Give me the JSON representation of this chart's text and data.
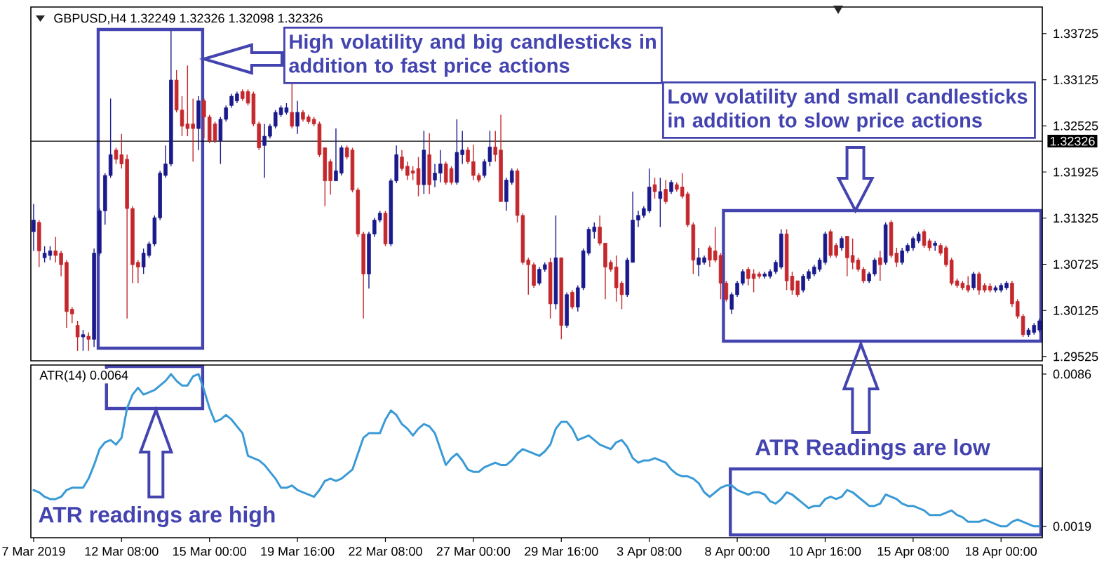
{
  "chart_data": [
    {
      "type": "candlestick",
      "title": "GBPUSD,H4 1.32249 1.32326 1.32098 1.32326",
      "categories": [
        null,
        null,
        null,
        null,
        null,
        null,
        null,
        null,
        null,
        null,
        null,
        null,
        null,
        null,
        null,
        null,
        null,
        null,
        null,
        null,
        null,
        null,
        null,
        null,
        null,
        null,
        null,
        null,
        null,
        null,
        null,
        null,
        null,
        null,
        null,
        null,
        null,
        null,
        null,
        null,
        null,
        null,
        null,
        null,
        null,
        null,
        null,
        null,
        null,
        null,
        null,
        null,
        null,
        null,
        null,
        null,
        null,
        null,
        null,
        null,
        null,
        null,
        null,
        null,
        null,
        null,
        null,
        null,
        null,
        null,
        null,
        null,
        null,
        null,
        null,
        null,
        null,
        null,
        null,
        null,
        null,
        null,
        null,
        null,
        null,
        null,
        null,
        null,
        null,
        null,
        null,
        null,
        null,
        null,
        null,
        null,
        null,
        null,
        null,
        null,
        null,
        null,
        null,
        null,
        null,
        null,
        null,
        null,
        null,
        null,
        null,
        null,
        null,
        null,
        null,
        null,
        null,
        null,
        null,
        null,
        null,
        null,
        null,
        null,
        null,
        null,
        null,
        null,
        null,
        null,
        null,
        null,
        null,
        null,
        null,
        null,
        null,
        null,
        null,
        null,
        null,
        null,
        null,
        null,
        null,
        null,
        null,
        null,
        null,
        null,
        null,
        null,
        null,
        null,
        null,
        null,
        null,
        null,
        null,
        null,
        null,
        null,
        null,
        null,
        null,
        null,
        null,
        null,
        null,
        null,
        null,
        null,
        null,
        null,
        null,
        null,
        null,
        null,
        null,
        null,
        null,
        null,
        null,
        null
      ],
      "ohlc": [
        [
          1.3115,
          1.3151,
          1.309,
          1.313
        ],
        [
          1.3127,
          1.313,
          1.3069,
          1.309
        ],
        [
          1.3081,
          1.3096,
          1.3075,
          1.3087
        ],
        [
          1.3084,
          1.3096,
          1.3078,
          1.309
        ],
        [
          1.309,
          1.3108,
          1.3075,
          1.3084
        ],
        [
          1.3087,
          1.309,
          1.3057,
          1.3072
        ],
        [
          1.3075,
          1.3078,
          1.299,
          1.3011
        ],
        [
          1.3014,
          1.3017,
          1.2996,
          1.3008
        ],
        [
          1.2993,
          1.2999,
          1.296,
          1.2978
        ],
        [
          1.2978,
          1.2987,
          1.296,
          1.2981
        ],
        [
          1.2979,
          1.2984,
          1.296,
          1.2975
        ],
        [
          1.2975,
          1.3093,
          1.2965,
          1.3087
        ],
        [
          1.3087,
          1.3145,
          1.3084,
          1.3142
        ],
        [
          1.3142,
          1.3191,
          1.3124,
          1.3188
        ],
        [
          1.3188,
          1.3288,
          1.3185,
          1.3215
        ],
        [
          1.3221,
          1.3224,
          1.3203,
          1.3209
        ],
        [
          1.3215,
          1.3242,
          1.3197,
          1.3203
        ],
        [
          1.3209,
          1.3215,
          1.3002,
          1.3145
        ],
        [
          1.3145,
          1.3148,
          1.3048,
          1.3072
        ],
        [
          1.3075,
          1.3078,
          1.3048,
          1.3069
        ],
        [
          1.3069,
          1.3093,
          1.306,
          1.3087
        ],
        [
          1.3084,
          1.3102,
          1.3081,
          1.3099
        ],
        [
          1.3099,
          1.3136,
          1.3096,
          1.3133
        ],
        [
          1.3133,
          1.3194,
          1.313,
          1.3191
        ],
        [
          1.3188,
          1.3227,
          1.3185,
          1.3203
        ],
        [
          1.3203,
          1.3376,
          1.32,
          1.3312
        ],
        [
          1.3312,
          1.3325,
          1.327,
          1.3273
        ],
        [
          1.3273,
          1.3291,
          1.3239,
          1.3252
        ],
        [
          1.3255,
          1.3331,
          1.3239,
          1.3249
        ],
        [
          1.3255,
          1.3288,
          1.3206,
          1.3249
        ],
        [
          1.3249,
          1.3291,
          1.3221,
          1.3285
        ],
        [
          1.3285,
          1.3288,
          1.3236,
          1.3264
        ],
        [
          1.3264,
          1.3267,
          1.323,
          1.3233
        ],
        [
          1.3255,
          1.3258,
          1.323,
          1.3233
        ],
        [
          1.3233,
          1.3264,
          1.3203,
          1.3261
        ],
        [
          1.3261,
          1.3279,
          1.3258,
          1.3276
        ],
        [
          1.3279,
          1.3294,
          1.3276,
          1.3291
        ],
        [
          1.3285,
          1.3297,
          1.3282,
          1.3294
        ],
        [
          1.3297,
          1.33,
          1.3285,
          1.3288
        ],
        [
          1.3297,
          1.33,
          1.3279,
          1.3282
        ],
        [
          1.3294,
          1.3297,
          1.3252,
          1.3255
        ],
        [
          1.3255,
          1.3258,
          1.3221,
          1.3224
        ],
        [
          1.3227,
          1.3255,
          1.3185,
          1.3239
        ],
        [
          1.3239,
          1.3255,
          1.3236,
          1.3252
        ],
        [
          1.3252,
          1.3273,
          1.3249,
          1.327
        ],
        [
          1.3267,
          1.3279,
          1.3264,
          1.3276
        ],
        [
          1.327,
          1.3282,
          1.3267,
          1.3276
        ],
        [
          1.327,
          1.3309,
          1.3249,
          1.3252
        ],
        [
          1.3252,
          1.3285,
          1.3242,
          1.327
        ],
        [
          1.327,
          1.3273,
          1.3258,
          1.3261
        ],
        [
          1.3264,
          1.3267,
          1.3255,
          1.3258
        ],
        [
          1.3261,
          1.3264,
          1.3252,
          1.3255
        ],
        [
          1.3255,
          1.3258,
          1.3212,
          1.3215
        ],
        [
          1.3224,
          1.3224,
          1.3148,
          1.3181
        ],
        [
          1.3206,
          1.3209,
          1.3163,
          1.3181
        ],
        [
          1.3181,
          1.3249,
          1.3181,
          1.3194
        ],
        [
          1.3191,
          1.3227,
          1.3188,
          1.3224
        ],
        [
          1.3224,
          1.3227,
          1.3209,
          1.3212
        ],
        [
          1.3221,
          1.3224,
          1.3166,
          1.3169
        ],
        [
          1.3169,
          1.3172,
          1.3108,
          1.3112
        ],
        [
          1.3112,
          1.3115,
          1.3002,
          1.306
        ],
        [
          1.306,
          1.3115,
          1.3041,
          1.3112
        ],
        [
          1.3112,
          1.3133,
          1.3108,
          1.313
        ],
        [
          1.313,
          1.3142,
          1.3127,
          1.3139
        ],
        [
          1.3139,
          1.3142,
          1.3096,
          1.3099
        ],
        [
          1.3099,
          1.3184,
          1.3096,
          1.3181
        ],
        [
          1.3181,
          1.3227,
          1.3178,
          1.3215
        ],
        [
          1.3212,
          1.3221,
          1.3194,
          1.3197
        ],
        [
          1.32,
          1.3206,
          1.3182,
          1.3188
        ],
        [
          1.3194,
          1.32,
          1.3182,
          1.3191
        ],
        [
          1.3197,
          1.3212,
          1.3161,
          1.3176
        ],
        [
          1.3176,
          1.3246,
          1.3164,
          1.3221
        ],
        [
          1.3215,
          1.3243,
          1.3164,
          1.3176
        ],
        [
          1.3182,
          1.3203,
          1.3173,
          1.3191
        ],
        [
          1.3191,
          1.3221,
          1.3179,
          1.3203
        ],
        [
          1.3203,
          1.3206,
          1.3176,
          1.3179
        ],
        [
          1.3197,
          1.32,
          1.3176,
          1.3179
        ],
        [
          1.3179,
          1.3261,
          1.3176,
          1.3218
        ],
        [
          1.3215,
          1.3246,
          1.3203,
          1.3221
        ],
        [
          1.3221,
          1.3225,
          1.3203,
          1.3206
        ],
        [
          1.3206,
          1.3228,
          1.3182,
          1.3188
        ],
        [
          1.3188,
          1.3191,
          1.3179,
          1.3182
        ],
        [
          1.3188,
          1.3209,
          1.3185,
          1.3206
        ],
        [
          1.3206,
          1.3246,
          1.32,
          1.3225
        ],
        [
          1.3225,
          1.3246,
          1.3206,
          1.3215
        ],
        [
          1.3221,
          1.3267,
          1.3154,
          1.3154
        ],
        [
          1.3154,
          1.3185,
          1.3142,
          1.3182
        ],
        [
          1.3179,
          1.3197,
          1.3176,
          1.3194
        ],
        [
          1.3194,
          1.3197,
          1.3127,
          1.3136
        ],
        [
          1.3136,
          1.3139,
          1.3072,
          1.3075
        ],
        [
          1.3078,
          1.3081,
          1.3033,
          1.3072
        ],
        [
          1.3072,
          1.3075,
          1.3042,
          1.3045
        ],
        [
          1.3048,
          1.3069,
          1.3045,
          1.3066
        ],
        [
          1.3066,
          1.3075,
          1.3063,
          1.3072
        ],
        [
          1.3075,
          1.3081,
          1.3002,
          1.3021
        ],
        [
          1.3021,
          1.3136,
          1.3014,
          1.3081
        ],
        [
          1.3081,
          1.3081,
          1.2975,
          1.2993
        ],
        [
          1.2993,
          1.3036,
          1.299,
          1.3033
        ],
        [
          1.3036,
          1.3039,
          1.3014,
          1.3017
        ],
        [
          1.3017,
          1.3045,
          1.3011,
          1.3042
        ],
        [
          1.3042,
          1.3093,
          1.3039,
          1.309
        ],
        [
          1.3087,
          1.3121,
          1.3084,
          1.3118
        ],
        [
          1.3115,
          1.3127,
          1.3106,
          1.3121
        ],
        [
          1.3121,
          1.3136,
          1.3097,
          1.31
        ],
        [
          1.31,
          1.31,
          1.3027,
          1.3069
        ],
        [
          1.3075,
          1.3078,
          1.3063,
          1.3066
        ],
        [
          1.3069,
          1.3084,
          1.3024,
          1.3042
        ],
        [
          1.3048,
          1.3051,
          1.3014,
          1.3033
        ],
        [
          1.3033,
          1.3081,
          1.303,
          1.3078
        ],
        [
          1.3075,
          1.3167,
          1.3075,
          1.313
        ],
        [
          1.313,
          1.3142,
          1.3121,
          1.3136
        ],
        [
          1.3136,
          1.3148,
          1.3133,
          1.3145
        ],
        [
          1.3142,
          1.3197,
          1.3139,
          1.3173
        ],
        [
          1.3176,
          1.3185,
          1.3158,
          1.3167
        ],
        [
          1.3158,
          1.3185,
          1.3121,
          1.3167
        ],
        [
          1.317,
          1.3182,
          1.3151,
          1.3154
        ],
        [
          1.3167,
          1.3182,
          1.3164,
          1.3179
        ],
        [
          1.3176,
          1.3179,
          1.3167,
          1.317
        ],
        [
          1.3173,
          1.3191,
          1.3158,
          1.3161
        ],
        [
          1.3164,
          1.3167,
          1.3121,
          1.3124
        ],
        [
          1.3124,
          1.3127,
          1.306,
          1.3078
        ],
        [
          1.3072,
          1.3094,
          1.3057,
          1.3081
        ],
        [
          1.3075,
          1.3084,
          1.3072,
          1.3081
        ],
        [
          1.3094,
          1.3097,
          1.3069,
          1.3078
        ],
        [
          1.309,
          1.3121,
          1.3075,
          1.3078
        ],
        [
          1.3084,
          1.3087,
          1.3027,
          1.3048
        ],
        [
          1.3048,
          1.3051,
          1.3024,
          1.3027
        ],
        [
          1.3014,
          1.3036,
          1.3008,
          1.3033
        ],
        [
          1.3033,
          1.3051,
          1.303,
          1.3048
        ],
        [
          1.3048,
          1.3066,
          1.3045,
          1.3063
        ],
        [
          1.3066,
          1.3069,
          1.3045,
          1.3054
        ],
        [
          1.306,
          1.3066,
          1.3036,
          1.3054
        ],
        [
          1.306,
          1.3063,
          1.3054,
          1.3057
        ],
        [
          1.3057,
          1.3063,
          1.3054,
          1.306
        ],
        [
          1.3057,
          1.3066,
          1.3054,
          1.3063
        ],
        [
          1.3063,
          1.3078,
          1.306,
          1.3075
        ],
        [
          1.3069,
          1.3118,
          1.3066,
          1.3112
        ],
        [
          1.3112,
          1.3118,
          1.3039,
          1.3051
        ],
        [
          1.3057,
          1.3063,
          1.3033,
          1.3039
        ],
        [
          1.3051,
          1.3051,
          1.303,
          1.3033
        ],
        [
          1.3039,
          1.306,
          1.3036,
          1.3057
        ],
        [
          1.3054,
          1.3066,
          1.3051,
          1.3063
        ],
        [
          1.306,
          1.3072,
          1.3057,
          1.3069
        ],
        [
          1.3066,
          1.3081,
          1.3063,
          1.3078
        ],
        [
          1.3075,
          1.3115,
          1.3072,
          1.3112
        ],
        [
          1.3115,
          1.3118,
          1.3081,
          1.3084
        ],
        [
          1.3097,
          1.31,
          1.3081,
          1.3084
        ],
        [
          1.3094,
          1.3109,
          1.309,
          1.3106
        ],
        [
          1.3109,
          1.3109,
          1.3057,
          1.3081
        ],
        [
          1.3084,
          1.3106,
          1.3066,
          1.3075
        ],
        [
          1.3078,
          1.3081,
          1.3063,
          1.3066
        ],
        [
          1.3066,
          1.3069,
          1.3048,
          1.3051
        ],
        [
          1.3051,
          1.3063,
          1.3048,
          1.306
        ],
        [
          1.306,
          1.3081,
          1.3057,
          1.3078
        ],
        [
          1.3081,
          1.309,
          1.3051,
          1.3072
        ],
        [
          1.3075,
          1.3127,
          1.3072,
          1.3124
        ],
        [
          1.3127,
          1.313,
          1.3081,
          1.3084
        ],
        [
          1.3087,
          1.3094,
          1.3069,
          1.3075
        ],
        [
          1.3075,
          1.3094,
          1.3072,
          1.309
        ],
        [
          1.309,
          1.31,
          1.3087,
          1.3097
        ],
        [
          1.3094,
          1.3109,
          1.309,
          1.3106
        ],
        [
          1.3103,
          1.3115,
          1.31,
          1.3112
        ],
        [
          1.3115,
          1.3118,
          1.3094,
          1.3097
        ],
        [
          1.3103,
          1.3106,
          1.309,
          1.3094
        ],
        [
          1.3097,
          1.3103,
          1.309,
          1.31
        ],
        [
          1.3097,
          1.31,
          1.3084,
          1.3087
        ],
        [
          1.3094,
          1.3097,
          1.3069,
          1.3072
        ],
        [
          1.3078,
          1.3081,
          1.3045,
          1.3048
        ],
        [
          1.3051,
          1.3054,
          1.3042,
          1.3045
        ],
        [
          1.3048,
          1.3051,
          1.3039,
          1.3042
        ],
        [
          1.3045,
          1.3057,
          1.3036,
          1.3039
        ],
        [
          1.3042,
          1.3063,
          1.3039,
          1.306
        ],
        [
          1.306,
          1.3063,
          1.3033,
          1.3039
        ],
        [
          1.3045,
          1.3048,
          1.3036,
          1.3039
        ],
        [
          1.3044,
          1.3048,
          1.3036,
          1.3039
        ],
        [
          1.3039,
          1.3045,
          1.3036,
          1.3042
        ],
        [
          1.3039,
          1.3048,
          1.3036,
          1.3045
        ],
        [
          1.3042,
          1.3051,
          1.3039,
          1.3048
        ],
        [
          1.3048,
          1.3051,
          1.3017,
          1.3021
        ],
        [
          1.3024,
          1.3027,
          1.3002,
          1.3005
        ],
        [
          1.3005,
          1.3008,
          1.2978,
          1.2981
        ],
        [
          1.2981,
          1.299,
          1.2978,
          1.2987
        ],
        [
          1.2984,
          1.2996,
          1.2981,
          1.2993
        ],
        [
          1.2987,
          1.3002,
          1.2984,
          1.2999
        ]
      ],
      "colors": [
        "#1a1a8c",
        "#c4282d",
        "#1a1a8c",
        "#1a1a8c",
        "#c4282d",
        "#c4282d",
        "#c4282d",
        "#c4282d",
        "#c4282d",
        "#1a1a8c",
        "#c4282d",
        "#1a1a8c",
        "#1a1a8c",
        "#1a1a8c",
        "#1a1a8c",
        "#c4282d",
        "#c4282d",
        "#c4282d",
        "#c4282d",
        "#c4282d",
        "#1a1a8c",
        "#1a1a8c",
        "#1a1a8c",
        "#1a1a8c",
        "#1a1a8c",
        "#1a1a8c",
        "#c4282d",
        "#c4282d",
        "#c4282d",
        "#c4282d",
        "#1a1a8c",
        "#c4282d",
        "#c4282d",
        "#c4282d",
        "#1a1a8c",
        "#1a1a8c",
        "#1a1a8c",
        "#1a1a8c",
        "#c4282d",
        "#c4282d",
        "#c4282d",
        "#c4282d",
        "#1a1a8c",
        "#1a1a8c",
        "#1a1a8c",
        "#1a1a8c",
        "#1a1a8c",
        "#c4282d",
        "#1a1a8c",
        "#c4282d",
        "#c4282d",
        "#c4282d",
        "#c4282d",
        "#c4282d",
        "#c4282d",
        "#1a1a8c",
        "#1a1a8c",
        "#c4282d",
        "#c4282d",
        "#c4282d",
        "#c4282d",
        "#1a1a8c",
        "#1a1a8c",
        "#1a1a8c",
        "#c4282d",
        "#1a1a8c",
        "#1a1a8c",
        "#c4282d",
        "#c4282d",
        "#c4282d",
        "#c4282d",
        "#1a1a8c",
        "#c4282d",
        "#1a1a8c",
        "#1a1a8c",
        "#c4282d",
        "#c4282d",
        "#1a1a8c",
        "#1a1a8c",
        "#c4282d",
        "#c4282d",
        "#c4282d",
        "#1a1a8c",
        "#1a1a8c",
        "#c4282d",
        "#c4282d",
        "#1a1a8c",
        "#1a1a8c",
        "#c4282d",
        "#c4282d",
        "#c4282d",
        "#c4282d",
        "#1a1a8c",
        "#1a1a8c",
        "#c4282d",
        "#1a1a8c",
        "#c4282d",
        "#1a1a8c",
        "#c4282d",
        "#1a1a8c",
        "#1a1a8c",
        "#1a1a8c",
        "#1a1a8c",
        "#c4282d",
        "#c4282d",
        "#c4282d",
        "#c4282d",
        "#c4282d",
        "#1a1a8c",
        "#1a1a8c",
        "#1a1a8c",
        "#1a1a8c",
        "#1a1a8c",
        "#c4282d",
        "#1a1a8c",
        "#c4282d",
        "#1a1a8c",
        "#c4282d",
        "#c4282d",
        "#c4282d",
        "#c4282d",
        "#1a1a8c",
        "#1a1a8c",
        "#c4282d",
        "#c4282d",
        "#c4282d",
        "#c4282d",
        "#1a1a8c",
        "#1a1a8c",
        "#1a1a8c",
        "#c4282d",
        "#c4282d",
        "#c4282d",
        "#1a1a8c",
        "#1a1a8c",
        "#1a1a8c",
        "#1a1a8c",
        "#c4282d",
        "#c4282d",
        "#c4282d",
        "#1a1a8c",
        "#1a1a8c",
        "#1a1a8c",
        "#1a1a8c",
        "#1a1a8c",
        "#c4282d",
        "#c4282d",
        "#1a1a8c",
        "#c4282d",
        "#c4282d",
        "#c4282d",
        "#c4282d",
        "#1a1a8c",
        "#1a1a8c",
        "#c4282d",
        "#1a1a8c",
        "#c4282d",
        "#c4282d",
        "#1a1a8c",
        "#1a1a8c",
        "#1a1a8c",
        "#1a1a8c",
        "#c4282d",
        "#c4282d",
        "#1a1a8c",
        "#c4282d",
        "#c4282d",
        "#c4282d",
        "#c4282d",
        "#c4282d",
        "#c4282d",
        "#1a1a8c",
        "#c4282d",
        "#c4282d",
        "#c4282d",
        "#1a1a8c",
        "#1a1a8c",
        "#1a1a8c",
        "#c4282d",
        "#c4282d",
        "#c4282d",
        "#1a1a8c",
        "#1a1a8c",
        "#1a1a8c"
      ],
      "ylim": [
        1.2947,
        1.3407
      ],
      "yticks": [
        1.33725,
        1.33125,
        1.32525,
        1.31925,
        1.31325,
        1.30725,
        1.30125,
        1.29525
      ],
      "ref_lines": [
        {
          "axis": "y",
          "value": 1.32326,
          "label": "1.32326",
          "color": "#000000"
        }
      ],
      "annotations": [
        "High volatility and big candlesticks in addition to fast price actions",
        "Low volatility and small candlesticks in addition to slow price actions"
      ]
    },
    {
      "type": "line",
      "title": "ATR(14) 0.0064",
      "categories": [
        "7 Mar 2019",
        null,
        null,
        null,
        null,
        null,
        null,
        null,
        null,
        null,
        null,
        null,
        null,
        null,
        null,
        null,
        "12 Mar 08:00",
        null,
        null,
        null,
        null,
        null,
        null,
        null,
        null,
        null,
        null,
        null,
        null,
        null,
        null,
        null,
        "15 Mar 00:00",
        null,
        null,
        null,
        null,
        null,
        null,
        null,
        null,
        null,
        null,
        null,
        null,
        null,
        null,
        null,
        "19 Mar 16:00",
        null,
        null,
        null,
        null,
        null,
        null,
        null,
        null,
        null,
        null,
        null,
        null,
        null,
        null,
        null,
        "22 Mar 08:00",
        null,
        null,
        null,
        null,
        null,
        null,
        null,
        null,
        null,
        null,
        null,
        null,
        null,
        null,
        null,
        "27 Mar 00:00",
        null,
        null,
        null,
        null,
        null,
        null,
        null,
        null,
        null,
        null,
        null,
        null,
        null,
        null,
        null,
        "29 Mar 16:00",
        null,
        null,
        null,
        null,
        null,
        null,
        null,
        null,
        null,
        null,
        null,
        null,
        null,
        null,
        null,
        "3 Apr 08:00",
        null,
        null,
        null,
        null,
        null,
        null,
        null,
        null,
        null,
        null,
        null,
        null,
        null,
        null,
        null,
        "8 Apr 00:00",
        null,
        null,
        null,
        null,
        null,
        null,
        null,
        null,
        null,
        null,
        null,
        null,
        null,
        null,
        null,
        "10 Apr 16:00",
        null,
        null,
        null,
        null,
        null,
        null,
        null,
        null,
        null,
        null,
        null,
        null,
        null,
        null,
        null,
        "15 Apr 08:00",
        null,
        null,
        null,
        null,
        null,
        null,
        null,
        null,
        null,
        null,
        null,
        null,
        null,
        null,
        null,
        "18 Apr 00:00",
        null,
        null,
        null,
        null,
        null,
        null,
        null
      ],
      "series": [
        {
          "color": "#3a9ad6",
          "values": [
            0.0035,
            0.0034,
            0.0032,
            0.0031,
            0.0031,
            0.0032,
            0.0035,
            0.0036,
            0.0036,
            0.0036,
            0.004,
            0.0046,
            0.0053,
            0.0056,
            0.0057,
            0.0055,
            0.0058,
            0.0071,
            0.0077,
            0.008,
            0.0077,
            0.0078,
            0.0079,
            0.0081,
            0.0083,
            0.0086,
            0.0083,
            0.0081,
            0.0081,
            0.0085,
            0.0086,
            0.0079,
            0.0071,
            0.0065,
            0.0066,
            0.0068,
            0.0066,
            0.0063,
            0.006,
            0.005,
            0.0049,
            0.0048,
            0.0046,
            0.0043,
            0.004,
            0.0036,
            0.0036,
            0.0037,
            0.0035,
            0.0034,
            0.0033,
            0.0032,
            0.0035,
            0.0039,
            0.004,
            0.0039,
            0.004,
            0.0042,
            0.0044,
            0.0051,
            0.0058,
            0.006,
            0.006,
            0.006,
            0.0066,
            0.007,
            0.0068,
            0.0064,
            0.0062,
            0.0059,
            0.0062,
            0.0064,
            0.0063,
            0.006,
            0.0053,
            0.0046,
            0.0049,
            0.0051,
            0.0048,
            0.0044,
            0.0043,
            0.0043,
            0.0045,
            0.0046,
            0.0047,
            0.0046,
            0.0046,
            0.0048,
            0.0051,
            0.0053,
            0.0052,
            0.0051,
            0.005,
            0.0052,
            0.0055,
            0.0062,
            0.0065,
            0.0065,
            0.0062,
            0.0057,
            0.0058,
            0.0059,
            0.0057,
            0.0055,
            0.0054,
            0.0053,
            0.0056,
            0.0057,
            0.0054,
            0.0049,
            0.0047,
            0.0048,
            0.0048,
            0.0049,
            0.0048,
            0.0047,
            0.0044,
            0.0042,
            0.0041,
            0.0041,
            0.004,
            0.0038,
            0.0034,
            0.0032,
            0.0034,
            0.0036,
            0.0037,
            0.0037,
            0.0035,
            0.0034,
            0.0033,
            0.0034,
            0.0034,
            0.0033,
            0.003,
            0.0029,
            0.0031,
            0.0034,
            0.0033,
            0.0031,
            0.0029,
            0.0027,
            0.0028,
            0.0028,
            0.0031,
            0.0032,
            0.0031,
            0.0032,
            0.0035,
            0.0034,
            0.0032,
            0.003,
            0.0028,
            0.0028,
            0.0029,
            0.0033,
            0.0032,
            0.0031,
            0.0029,
            0.0028,
            0.0028,
            0.0027,
            0.0026,
            0.0024,
            0.0024,
            0.0024,
            0.0025,
            0.0026,
            0.0024,
            0.0023,
            0.0021,
            0.0021,
            0.0021,
            0.0022,
            0.0021,
            0.002,
            0.0019,
            0.0019,
            0.0021,
            0.0022,
            0.0021,
            0.002,
            0.0019,
            0.0019
          ]
        }
      ],
      "ylim": [
        0.0014,
        0.009
      ],
      "yticks": [
        0.0086,
        0.0019
      ],
      "annotations": [
        "ATR readings are high",
        "ATR Readings are low"
      ]
    }
  ]
}
